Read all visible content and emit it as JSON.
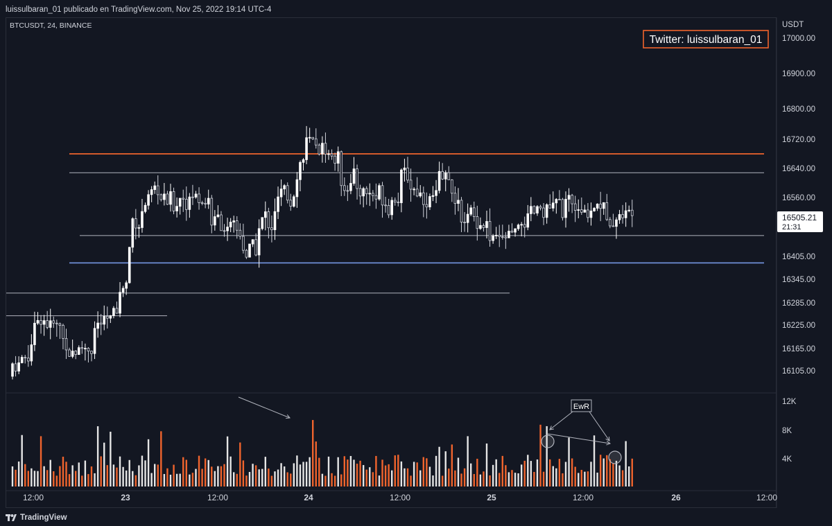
{
  "header": {
    "text": "luissulbaran_01 publicado en TradingView.com, Nov 25, 2022 19:14 UTC-4"
  },
  "footer": {
    "logo_text": "TradingView"
  },
  "chart_data": {
    "type": "candlestick",
    "symbol_label": "BTCUSDT, 24, BINANCE",
    "watermark_box": "Twitter: luissulbaran_01",
    "price_axis": {
      "unit_label": "USDT",
      "ticks": [
        17000,
        16900,
        16800,
        16720,
        16640,
        16560,
        16405,
        16345,
        16285,
        16225,
        16165,
        16105
      ],
      "tick_labels": [
        "17000.00",
        "16900.00",
        "16800.00",
        "16720.00",
        "16640.00",
        "16560.00",
        "16405.00",
        "16345.00",
        "16285.00",
        "16225.00",
        "16165.00",
        "16105.00"
      ]
    },
    "last_price": {
      "value": 16505.21,
      "label": "16505.21",
      "countdown": "21:31"
    },
    "volume_axis": {
      "ticks": [
        12000,
        8000,
        4000
      ],
      "tick_labels": [
        "12K",
        "8K",
        "4K"
      ]
    },
    "time_axis": {
      "labels": [
        "12:00",
        "23",
        "12:00",
        "24",
        "12:00",
        "25",
        "12:00",
        "26",
        "12:00"
      ]
    },
    "horizontal_levels": [
      {
        "price": 16680,
        "color": "#f0642d",
        "kind": "resistance"
      },
      {
        "price": 16628,
        "color": "#b2b5be",
        "kind": "level"
      },
      {
        "price": 16460,
        "color": "#b2b5be",
        "kind": "level"
      },
      {
        "price": 16388,
        "color": "#6f8fd8",
        "kind": "support"
      },
      {
        "price": 16310,
        "color": "#b2b5be",
        "kind": "level"
      },
      {
        "price": 16250,
        "color": "#b2b5be",
        "kind": "level"
      }
    ],
    "volume_annotation": {
      "label": "EwR"
    },
    "candles_ohlc_sample_anchor": [
      [
        16090,
        16200
      ],
      [
        16200,
        16300
      ],
      [
        16180,
        16250
      ],
      [
        16120,
        16200
      ],
      [
        16130,
        16210
      ],
      [
        16200,
        16260
      ],
      [
        16250,
        16440
      ],
      [
        16440,
        16590
      ],
      [
        16540,
        16600
      ],
      [
        16470,
        16590
      ],
      [
        16520,
        16630
      ],
      [
        16500,
        16620
      ],
      [
        16430,
        16560
      ],
      [
        16380,
        16520
      ],
      [
        16350,
        16470
      ],
      [
        16440,
        16560
      ],
      [
        16500,
        16620
      ],
      [
        16560,
        16800
      ],
      [
        16650,
        16750
      ],
      [
        16620,
        16720
      ],
      [
        16560,
        16660
      ],
      [
        16520,
        16620
      ],
      [
        16500,
        16620
      ],
      [
        16520,
        16660
      ],
      [
        16540,
        16620
      ],
      [
        16520,
        16600
      ],
      [
        16560,
        16660
      ],
      [
        16480,
        16560
      ],
      [
        16460,
        16540
      ],
      [
        16400,
        16470
      ],
      [
        16420,
        16500
      ],
      [
        16460,
        16560
      ],
      [
        16490,
        16570
      ],
      [
        16480,
        16580
      ],
      [
        16480,
        16540
      ],
      [
        16500,
        16600
      ],
      [
        16480,
        16560
      ],
      [
        16500,
        16540
      ]
    ]
  }
}
